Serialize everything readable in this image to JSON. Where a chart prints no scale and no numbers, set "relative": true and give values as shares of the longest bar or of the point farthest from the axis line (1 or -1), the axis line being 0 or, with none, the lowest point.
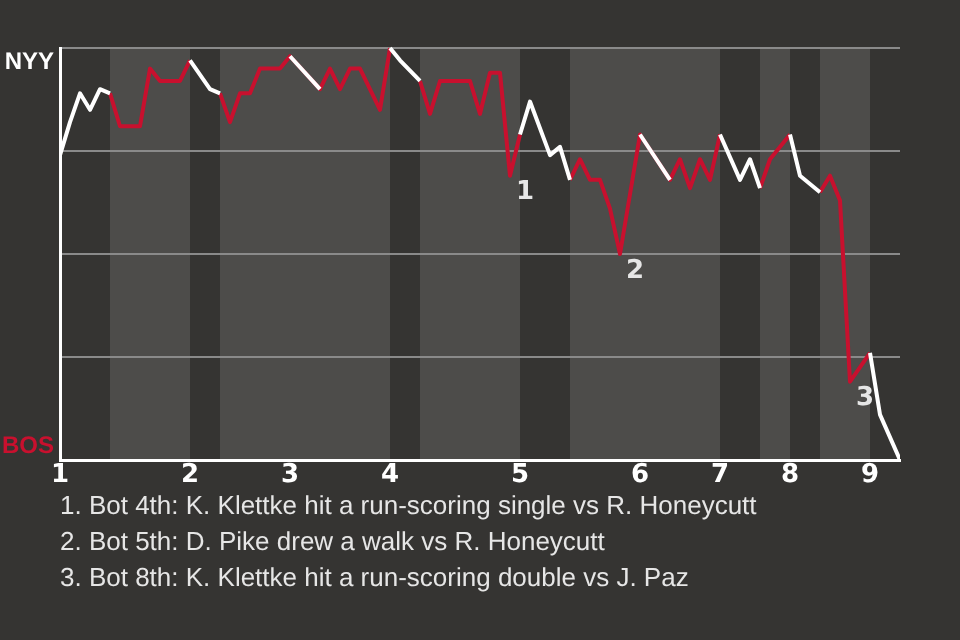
{
  "chart_data": {
    "type": "line",
    "relative": true,
    "categories": [
      "1",
      null,
      null,
      null,
      null,
      null,
      null,
      null,
      null,
      null,
      null,
      null,
      null,
      "2",
      null,
      null,
      null,
      null,
      null,
      null,
      null,
      null,
      null,
      "3",
      null,
      null,
      null,
      null,
      null,
      null,
      null,
      null,
      null,
      "4",
      null,
      null,
      null,
      null,
      null,
      null,
      null,
      null,
      null,
      null,
      null,
      null,
      "5",
      null,
      null,
      null,
      null,
      null,
      null,
      null,
      null,
      null,
      null,
      null,
      "6",
      null,
      null,
      null,
      null,
      null,
      null,
      null,
      "7",
      null,
      null,
      null,
      null,
      null,
      null,
      "8",
      null,
      null,
      null,
      null,
      null,
      null,
      null,
      "9",
      null,
      null,
      null
    ],
    "grid": "y",
    "marker": "none",
    "series": [
      {
        "name": "NYY",
        "color": "#ffffff",
        "values": [
          0.74,
          0.82,
          0.89,
          0.85,
          0.9,
          0.89,
          null,
          null,
          null,
          null,
          null,
          null,
          null,
          0.97,
          null,
          0.9,
          0.89,
          null,
          null,
          null,
          null,
          null,
          null,
          0.98,
          null,
          null,
          0.9,
          null,
          null,
          null,
          null,
          null,
          null,
          1,
          0.97,
          null,
          0.92,
          null,
          null,
          null,
          null,
          null,
          null,
          null,
          null,
          null,
          0.79,
          0.87,
          null,
          0.74,
          0.76,
          0.68,
          null,
          null,
          null,
          null,
          null,
          null,
          0.79,
          null,
          null,
          0.68,
          null,
          null,
          null,
          null,
          0.79,
          null,
          0.68,
          0.73,
          0.66,
          null,
          null,
          0.79,
          0.69,
          null,
          0.65,
          null,
          null,
          null,
          null,
          0.26,
          0.11,
          null,
          0
        ]
      },
      {
        "name": "BOS",
        "color": "#c8102e",
        "values": [
          null,
          null,
          null,
          null,
          null,
          0.89,
          0.81,
          null,
          0.81,
          0.95,
          0.92,
          null,
          0.92,
          0.97,
          null,
          null,
          0.89,
          0.82,
          0.89,
          0.89,
          0.95,
          null,
          0.95,
          0.98,
          null,
          null,
          0.9,
          0.95,
          0.9,
          0.95,
          0.95,
          null,
          0.85,
          1,
          null,
          null,
          0.92,
          0.84,
          0.92,
          null,
          null,
          0.92,
          0.84,
          0.94,
          0.94,
          0.69,
          0.79,
          null,
          null,
          null,
          null,
          0.68,
          0.73,
          0.68,
          0.68,
          0.61,
          0.5,
          null,
          0.79,
          null,
          null,
          0.68,
          0.73,
          0.66,
          0.73,
          0.68,
          0.79,
          null,
          null,
          null,
          0.66,
          0.73,
          null,
          0.79,
          null,
          null,
          0.65,
          0.69,
          0.63,
          0.19,
          null,
          0.26,
          null,
          null,
          null
        ]
      }
    ],
    "annotations": [
      "1",
      "2",
      "3",
      "1. Bot 4th: K. Klettke hit a run-scoring single vs R. Honeycutt",
      "2. Bot 5th: D. Pike drew a walk vs R. Honeycutt",
      "3. Bot 8th: K. Klettke hit a run-scoring double vs J. Paz"
    ]
  }
}
